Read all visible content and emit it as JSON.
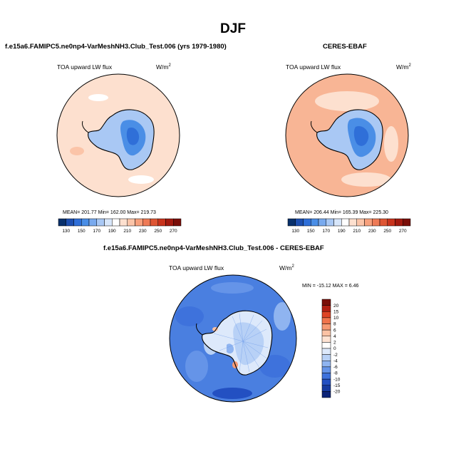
{
  "title": "DJF",
  "panels": [
    {
      "id": "model",
      "title": "f.e15a6.FAMIPC5.ne0np4-VarMeshNH3.Club_Test.006 (yrs 1979-1980)",
      "variable": "TOA upward LW flux",
      "units": "W/m",
      "units_sup": "2",
      "stats": "MEAN= 201.77  Min= 162.00  Max= 219.73",
      "ocean_color": "#fde0cf",
      "outer_color": "#fbd0b8"
    },
    {
      "id": "obs",
      "title": "CERES-EBAF",
      "variable": "TOA upward LW flux",
      "units": "W/m",
      "units_sup": "2",
      "stats": "MEAN= 206.44  Min= 165.39  Max= 225.30",
      "ocean_color": "#f8b595",
      "outer_color": "#f4a07c"
    },
    {
      "id": "diff",
      "title": "f.e15a6.FAMIPC5.ne0np4-VarMeshNH3.Club_Test.006 - CERES-EBAF",
      "variable": "TOA upward LW flux",
      "units": "W/m",
      "units_sup": "2",
      "minmax": "MIN = -15.12  MAX =   6.46",
      "ocean_color": "#4a7fe0"
    }
  ],
  "colorbar_abs": {
    "labels": [
      "130",
      "150",
      "170",
      "190",
      "210",
      "230",
      "250",
      "270"
    ],
    "colors": [
      "#08306b",
      "#1d4fb0",
      "#2f6fd8",
      "#4a8ee6",
      "#79aaee",
      "#a9c8f4",
      "#d7e6fa",
      "#ffffff",
      "#fde0cf",
      "#fbc4a8",
      "#f7a07c",
      "#ee7a56",
      "#de5533",
      "#c8331c",
      "#a31a0f",
      "#7a0e08"
    ]
  },
  "colorbar_diff": {
    "labels": [
      "20",
      "15",
      "10",
      "8",
      "6",
      "4",
      "2",
      "0",
      "-2",
      "-4",
      "-6",
      "-8",
      "-10",
      "-15",
      "-20"
    ],
    "colors": [
      "#7a0e08",
      "#b21f12",
      "#de4425",
      "#f0744c",
      "#f79a74",
      "#fbc2a4",
      "#fde2d2",
      "#ffffff",
      "#dde9fb",
      "#b8d1f6",
      "#8fb4f0",
      "#6594e8",
      "#3e72dc",
      "#2350c2",
      "#163aa0",
      "#0c2478"
    ]
  }
}
